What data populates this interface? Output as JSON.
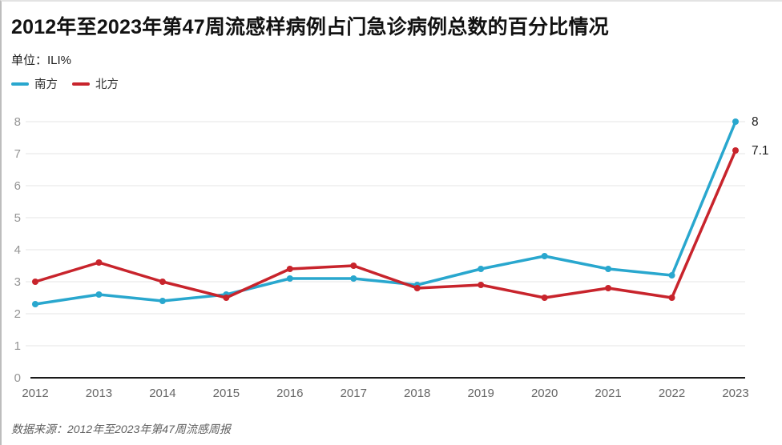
{
  "title": "2012年至2023年第47周流感样病例占门急诊病例总数的百分比情况",
  "unit_label": "单位：ILI%",
  "legend": [
    {
      "id": "south",
      "label": "南方",
      "color": "#29A7CE"
    },
    {
      "id": "north",
      "label": "北方",
      "color": "#C8242C"
    }
  ],
  "source": "数据来源：2012年至2023年第47周流感周报",
  "chart_data": {
    "type": "line",
    "title": "2012年至2023年第47周流感样病例占门急诊病例总数的百分比情况",
    "xlabel": "",
    "ylabel": "ILI%",
    "categories": [
      "2012",
      "2013",
      "2014",
      "2015",
      "2016",
      "2017",
      "2018",
      "2019",
      "2020",
      "2021",
      "2022",
      "2023"
    ],
    "series": [
      {
        "id": "south",
        "name": "南方",
        "color": "#29A7CE",
        "values": [
          2.3,
          2.6,
          2.4,
          2.6,
          3.1,
          3.1,
          2.9,
          3.4,
          3.8,
          3.4,
          3.2,
          8
        ],
        "end_label": "8"
      },
      {
        "id": "north",
        "name": "北方",
        "color": "#C8242C",
        "values": [
          3.0,
          3.6,
          3.0,
          2.5,
          3.4,
          3.5,
          2.8,
          2.9,
          2.5,
          2.8,
          2.5,
          7.1
        ],
        "end_label": "7.1"
      }
    ],
    "ylim": [
      0,
      8
    ],
    "yticks": [
      0,
      1,
      2,
      3,
      4,
      5,
      6,
      7,
      8
    ],
    "grid": true,
    "legend_position": "top-left"
  },
  "style_colors": {
    "gridline": "#e4e4e4",
    "baseline": "#1a1a1a",
    "y_tick_label": "#949494",
    "x_tick_label": "#666666",
    "end_label": "#1d1d1d"
  }
}
